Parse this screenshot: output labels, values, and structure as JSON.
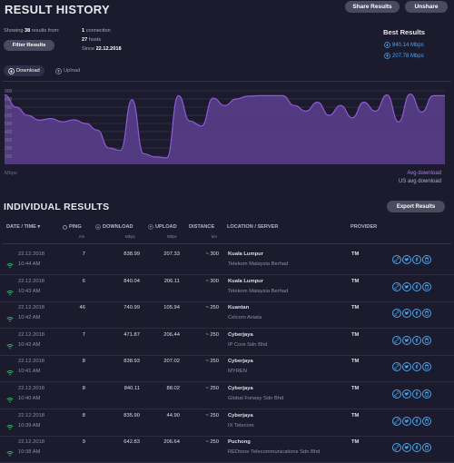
{
  "header": {
    "title": "RESULT HISTORY",
    "share_label": "Share Results",
    "unshare_label": "Unshare"
  },
  "summary": {
    "showing_prefix": "Showing",
    "showing_count": "38",
    "showing_suffix": "results from:",
    "connections_count": "1",
    "connections_label": "connection",
    "hosts_count": "27",
    "hosts_label": "hosts",
    "since_label": "Since",
    "since_date": "22.12.2018",
    "filter_label": "Filter Results"
  },
  "best": {
    "title": "Best Results",
    "download": "840.14 Mbps",
    "upload": "207.78 Mbps",
    "accent": "#4aa7f0"
  },
  "tabs": [
    {
      "label": "Download",
      "active": true,
      "icon": "download-icon"
    },
    {
      "label": "Upload",
      "active": false,
      "icon": "upload-icon"
    }
  ],
  "chart_data": {
    "type": "area",
    "ylabel": "Mbps",
    "ylim": [
      0,
      900
    ],
    "yticks": [
      "900",
      "800",
      "700",
      "600",
      "500",
      "400",
      "300",
      "200",
      "100"
    ],
    "series": [
      {
        "name": "Avg download",
        "color": "#a77ff0",
        "values": [
          850,
          700,
          600,
          540,
          560,
          520,
          545,
          500,
          420,
          200,
          170,
          790,
          130,
          90,
          80,
          840,
          530,
          470,
          810,
          720,
          800,
          835,
          840,
          840,
          840,
          720,
          650,
          760,
          600,
          720,
          570,
          760,
          650,
          850,
          520,
          860,
          640,
          840,
          840
        ]
      },
      {
        "name": "US avg download",
        "color": "#b0b0c8",
        "values": []
      }
    ],
    "grid": true,
    "legend_position": "bottom-right",
    "fill": "#5a3f8e",
    "line": "#8e5ad8"
  },
  "individual": {
    "title": "INDIVIDUAL RESULTS",
    "export_label": "Export Results",
    "columns": {
      "datetime": "DATE / TIME",
      "ping": "PING",
      "ping_unit": "ms",
      "download": "DOWNLOAD",
      "download_unit": "Mbps",
      "upload": "UPLOAD",
      "upload_unit": "Mbps",
      "distance": "DISTANCE",
      "distance_unit": "km",
      "location": "LOCATION / SERVER",
      "provider": "PROVIDER"
    },
    "rows": [
      {
        "date": "22.12.2018",
        "time": "10:44 AM",
        "ping": "7",
        "download": "838.99",
        "upload": "207.33",
        "distance": "~ 300",
        "location": "Kuala Lumpur",
        "server": "Telekom Malaysia Berhad",
        "provider": "TM"
      },
      {
        "date": "22.12.2018",
        "time": "10:43 AM",
        "ping": "6",
        "download": "840.04",
        "upload": "206.11",
        "distance": "~ 300",
        "location": "Kuala Lumpur",
        "server": "Telekom Malaysia Berhad",
        "provider": "TM"
      },
      {
        "date": "22.12.2018",
        "time": "10:42 AM",
        "ping": "46",
        "download": "740.99",
        "upload": "105.94",
        "distance": "~ 250",
        "location": "Kuantan",
        "server": "Celcom Axiata",
        "provider": "TM"
      },
      {
        "date": "22.12.2018",
        "time": "10:42 AM",
        "ping": "7",
        "download": "471.87",
        "upload": "206.44",
        "distance": "~ 250",
        "location": "Cyberjaya",
        "server": "IP Core Sdn Bhd",
        "provider": "TM"
      },
      {
        "date": "22.12.2018",
        "time": "10:41 AM",
        "ping": "8",
        "download": "838.93",
        "upload": "207.02",
        "distance": "~ 250",
        "location": "Cyberjaya",
        "server": "MYREN",
        "provider": "TM"
      },
      {
        "date": "22.12.2018",
        "time": "10:40 AM",
        "ping": "8",
        "download": "840.11",
        "upload": "88.02",
        "distance": "~ 250",
        "location": "Cyberjaya",
        "server": "Global Forway Sdn Bhd",
        "provider": "TM"
      },
      {
        "date": "22.12.2018",
        "time": "10:39 AM",
        "ping": "8",
        "download": "835.90",
        "upload": "44.90",
        "distance": "~ 250",
        "location": "Cyberjaya",
        "server": "IX Telecom",
        "provider": "TM"
      },
      {
        "date": "22.12.2018",
        "time": "10:38 AM",
        "ping": "9",
        "download": "642.83",
        "upload": "206.64",
        "distance": "~ 250",
        "location": "Puchong",
        "server": "REDtone Telecommunications Sdn Bhd",
        "provider": "TM"
      }
    ]
  }
}
